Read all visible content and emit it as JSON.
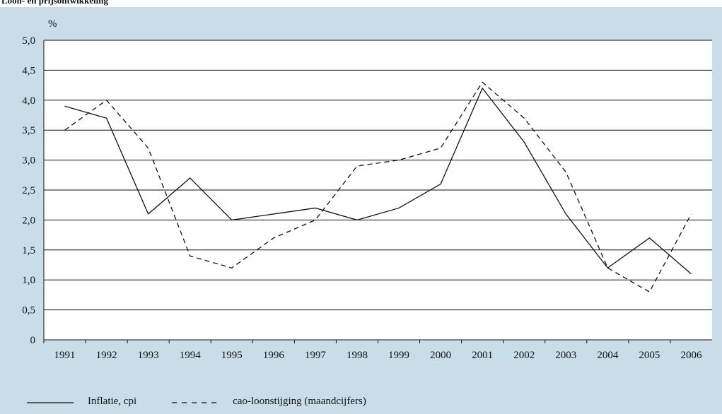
{
  "chart_data": {
    "type": "line",
    "title": "Loon- en prijsontwikkeling",
    "y_unit": "%",
    "categories": [
      "1991",
      "1992",
      "1993",
      "1994",
      "1995",
      "1996",
      "1997",
      "1998",
      "1999",
      "2000",
      "2001",
      "2002",
      "2003",
      "2004",
      "2005",
      "2006"
    ],
    "series": [
      {
        "name": "Inflatie, cpi",
        "color": "#111111",
        "style": "solid",
        "values": [
          3.9,
          3.7,
          2.1,
          2.7,
          2.0,
          2.1,
          2.2,
          2.0,
          2.2,
          2.6,
          4.2,
          3.3,
          2.1,
          1.2,
          1.7,
          1.1
        ]
      },
      {
        "name": "cao-loonstijging (maandcijfers)",
        "color": "#111111",
        "style": "dashed",
        "values": [
          3.5,
          4.0,
          3.2,
          1.4,
          1.2,
          1.7,
          2.0,
          2.9,
          3.0,
          3.2,
          4.3,
          3.7,
          2.8,
          1.2,
          0.8,
          2.1
        ]
      }
    ],
    "ylim": [
      0,
      5
    ],
    "yticks": [
      0,
      {
        "value": 0.5,
        "label": "0,5"
      },
      {
        "value": 1,
        "label": "1,0"
      },
      {
        "value": 1.5,
        "label": "1,5"
      },
      {
        "value": 2,
        "label": "2,0"
      },
      {
        "value": 2.5,
        "label": "2,5"
      },
      {
        "value": 3,
        "label": "3,0"
      },
      {
        "value": 3.5,
        "label": "3,5"
      },
      {
        "value": 4,
        "label": "4,0"
      },
      {
        "value": 4.5,
        "label": "4,5"
      },
      {
        "value": 5,
        "label": "5,0"
      }
    ],
    "grid": true,
    "legend": "bottom"
  }
}
